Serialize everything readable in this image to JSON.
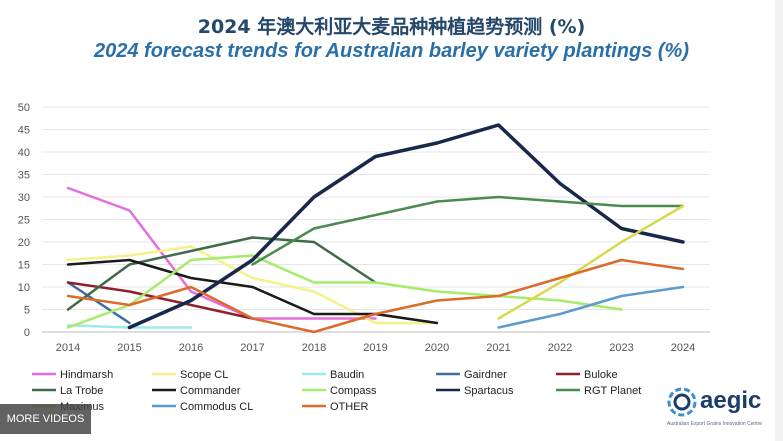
{
  "titles": {
    "zh": "2024 年澳大利亚大麦品种种植趋势预测 (%)",
    "en": "2024 forecast trends for Australian barley variety plantings (%)"
  },
  "overlay": {
    "more_videos": "MORE VIDEOS"
  },
  "logo": {
    "name": "aegic",
    "subtitle": "Australian Export Grains Innovation Centre"
  },
  "chart_data": {
    "type": "line",
    "title": "2024 forecast trends for Australian barley variety plantings (%)",
    "x": [
      2014,
      2015,
      2016,
      2017,
      2018,
      2019,
      2020,
      2021,
      2022,
      2023,
      2024
    ],
    "ylim": [
      0,
      50
    ],
    "yticks": [
      0,
      5,
      10,
      15,
      20,
      25,
      30,
      35,
      40,
      45,
      50
    ],
    "grid": true,
    "legend_position": "bottom",
    "series": [
      {
        "name": "Hindmarsh",
        "color": "#e36ee0",
        "values": [
          32,
          27,
          9,
          3,
          3,
          3,
          null,
          null,
          null,
          null,
          null
        ]
      },
      {
        "name": "Scope CL",
        "color": "#f5f08a",
        "values": [
          16,
          17,
          19,
          12,
          9,
          2,
          2,
          null,
          null,
          null,
          null
        ]
      },
      {
        "name": "Baudin",
        "color": "#9fe8ec",
        "values": [
          1.5,
          1,
          1,
          null,
          null,
          null,
          null,
          null,
          null,
          null,
          null
        ]
      },
      {
        "name": "Gairdner",
        "color": "#3d6fa5",
        "values": [
          11,
          2,
          null,
          null,
          null,
          null,
          null,
          null,
          null,
          null,
          null
        ]
      },
      {
        "name": "Buloke",
        "color": "#8e1f2c",
        "values": [
          11,
          9,
          6,
          3,
          null,
          null,
          null,
          null,
          null,
          null,
          null
        ]
      },
      {
        "name": "La Trobe",
        "color": "#3f6b4a",
        "values": [
          5,
          15,
          18,
          21,
          20,
          11,
          null,
          null,
          null,
          null,
          null
        ]
      },
      {
        "name": "Commander",
        "color": "#1a1a1a",
        "values": [
          15,
          16,
          12,
          10,
          4,
          4,
          2,
          null,
          null,
          null,
          null
        ]
      },
      {
        "name": "Compass",
        "color": "#a4ec6a",
        "values": [
          1,
          6,
          16,
          17,
          11,
          11,
          9,
          8,
          7,
          5,
          null
        ]
      },
      {
        "name": "Spartacus",
        "color": "#17284a",
        "values": [
          null,
          1,
          7,
          16,
          30,
          39,
          42,
          46,
          33,
          23,
          20
        ]
      },
      {
        "name": "RGT Planet",
        "color": "#4b8c4e",
        "values": [
          null,
          null,
          null,
          15,
          23,
          26,
          29,
          30,
          29,
          28,
          28
        ]
      },
      {
        "name": "Maximus",
        "color": "#d8d84c",
        "values": [
          null,
          null,
          null,
          null,
          null,
          null,
          null,
          3,
          11,
          20,
          28
        ]
      },
      {
        "name": "Commodus CL",
        "color": "#5b9bd0",
        "values": [
          null,
          null,
          null,
          null,
          null,
          null,
          null,
          1,
          4,
          8,
          10
        ]
      },
      {
        "name": "OTHER",
        "color": "#dc6a2a",
        "values": [
          8,
          6,
          10,
          3,
          0,
          4,
          7,
          8,
          12,
          16,
          14
        ]
      }
    ]
  }
}
